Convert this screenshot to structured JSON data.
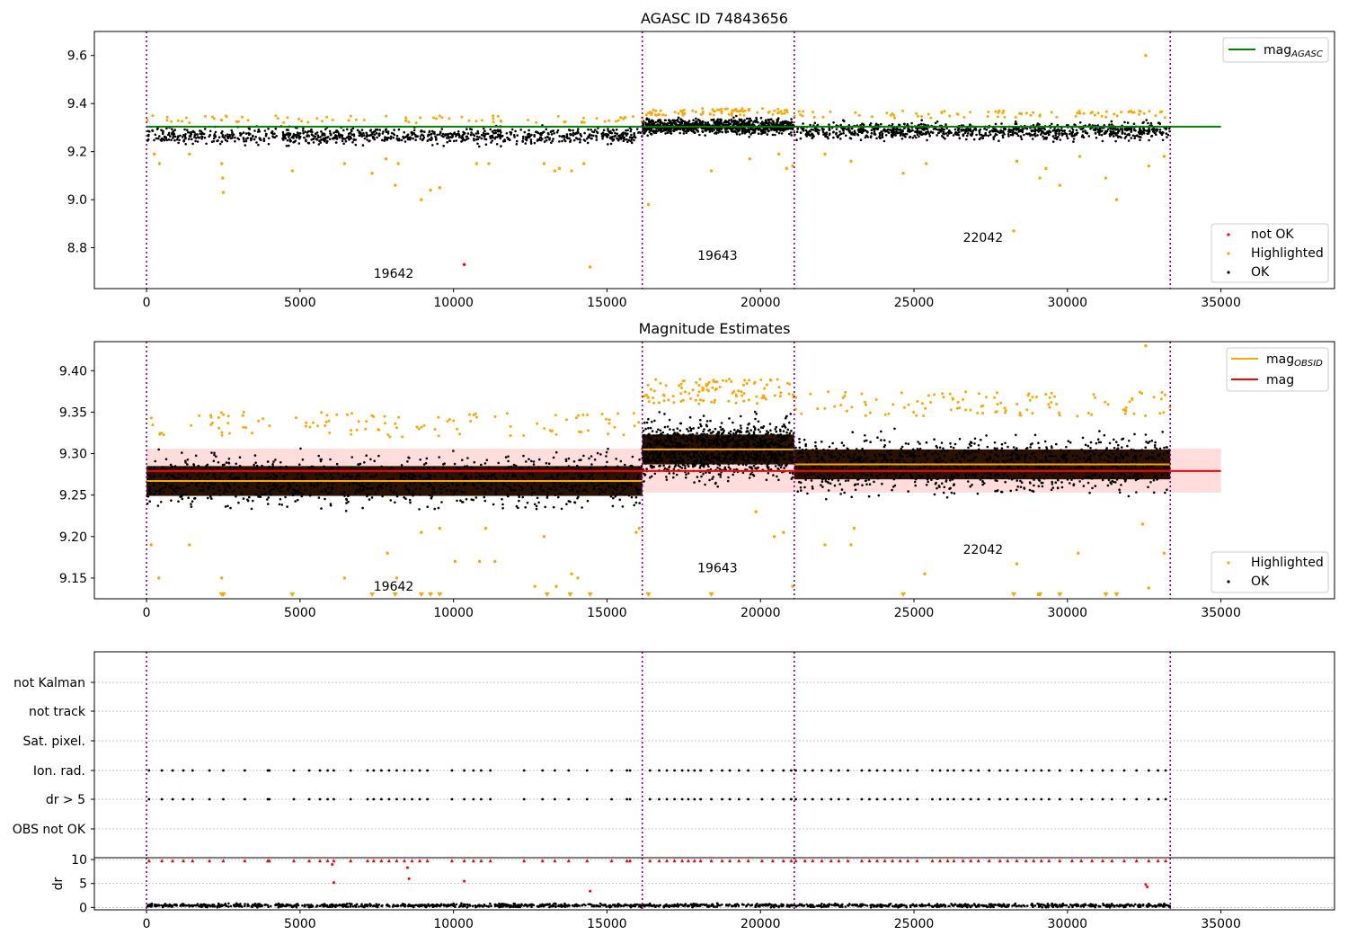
{
  "chart_data": [
    {
      "type": "scatter",
      "title": "AGASC ID 74843656",
      "xlim": [
        -1700,
        38700
      ],
      "ylim": [
        8.63,
        9.7
      ],
      "xticks": [
        0,
        5000,
        10000,
        15000,
        20000,
        25000,
        30000,
        35000
      ],
      "yticks": [
        8.8,
        9.0,
        9.2,
        9.4,
        9.6
      ],
      "ytick_labels": [
        "8.8",
        "9.0",
        "9.2",
        "9.4",
        "9.6"
      ],
      "observation_boundaries": [
        0,
        16150,
        21100,
        33350
      ],
      "observation_labels": [
        {
          "text": "19642",
          "x": 8050,
          "y": 8.675
        },
        {
          "text": "19643",
          "x": 18600,
          "y": 8.75
        },
        {
          "text": "22042",
          "x": 27250,
          "y": 8.825
        }
      ],
      "reference_line": {
        "name": "mag_AGASC",
        "value": 9.304,
        "x_range": [
          0,
          35000
        ],
        "color": "#008000"
      },
      "series": [
        {
          "name": "OK",
          "color": "#000000",
          "bands": [
            {
              "x_range": [
                0,
                16150
              ],
              "low": 9.22,
              "high": 9.32,
              "center": 9.265
            },
            {
              "x_range": [
                16150,
                21100
              ],
              "low": 9.26,
              "high": 9.35,
              "center": 9.305
            },
            {
              "x_range": [
                21100,
                33350
              ],
              "low": 9.24,
              "high": 9.34,
              "center": 9.285
            }
          ]
        },
        {
          "name": "Highlighted",
          "color": "#ffa500",
          "points": [
            [
              250,
              9.19
            ],
            [
              420,
              9.15
            ],
            [
              1400,
              9.19
            ],
            [
              2450,
              9.15
            ],
            [
              2480,
              9.09
            ],
            [
              2500,
              9.03
            ],
            [
              4750,
              9.12
            ],
            [
              6450,
              9.15
            ],
            [
              7350,
              9.11
            ],
            [
              7800,
              9.17
            ],
            [
              8100,
              9.06
            ],
            [
              8200,
              9.15
            ],
            [
              8950,
              9.0
            ],
            [
              9250,
              9.04
            ],
            [
              9550,
              9.05
            ],
            [
              10750,
              9.15
            ],
            [
              11150,
              9.15
            ],
            [
              12950,
              9.15
            ],
            [
              13300,
              9.12
            ],
            [
              13450,
              9.13
            ],
            [
              13850,
              9.12
            ],
            [
              14250,
              9.15
            ],
            [
              14450,
              8.72
            ],
            [
              16350,
              8.98
            ],
            [
              18400,
              9.12
            ],
            [
              19650,
              9.17
            ],
            [
              20600,
              9.19
            ],
            [
              20850,
              9.13
            ],
            [
              21050,
              9.14
            ],
            [
              22100,
              9.19
            ],
            [
              22950,
              9.16
            ],
            [
              24650,
              9.11
            ],
            [
              25400,
              9.15
            ],
            [
              28250,
              8.87
            ],
            [
              28350,
              9.16
            ],
            [
              29100,
              9.09
            ],
            [
              29300,
              9.13
            ],
            [
              29750,
              9.06
            ],
            [
              30400,
              9.18
            ],
            [
              31250,
              9.09
            ],
            [
              31600,
              9.0
            ],
            [
              32550,
              9.6
            ],
            [
              32650,
              9.14
            ],
            [
              33150,
              9.18
            ]
          ]
        },
        {
          "name": "not OK",
          "color": "#ff0000",
          "points": [
            [
              10350,
              8.73
            ]
          ]
        }
      ],
      "legends": [
        [
          "mag_AGASC"
        ],
        [
          "not OK",
          "Highlighted",
          "OK"
        ]
      ]
    },
    {
      "type": "scatter",
      "title": "Magnitude Estimates",
      "xlim": [
        -1700,
        38700
      ],
      "ylim": [
        9.125,
        9.435
      ],
      "xticks": [
        0,
        5000,
        10000,
        15000,
        20000,
        25000,
        30000,
        35000
      ],
      "yticks": [
        9.15,
        9.2,
        9.25,
        9.3,
        9.35,
        9.4
      ],
      "ytick_labels": [
        "9.15",
        "9.20",
        "9.25",
        "9.30",
        "9.35",
        "9.40"
      ],
      "observation_boundaries": [
        0,
        16150,
        21100,
        33350
      ],
      "observation_labels": [
        {
          "text": "19642",
          "x": 8050,
          "y": 9.135
        },
        {
          "text": "19643",
          "x": 18600,
          "y": 9.157
        },
        {
          "text": "22042",
          "x": 27250,
          "y": 9.179
        }
      ],
      "reference_band": {
        "low": 9.253,
        "high": 9.306,
        "x_range": [
          0,
          35000
        ],
        "color": "#ffdddd"
      },
      "lines": [
        {
          "name": "mag_OBSID",
          "color": "#ffa500",
          "segments": [
            [
              0,
              16150,
              9.267
            ],
            [
              16150,
              21100,
              9.305
            ],
            [
              21100,
              33350,
              9.287
            ]
          ]
        },
        {
          "name": "mag",
          "color": "#ff0000",
          "segments": [
            [
              0,
              35000,
              9.279
            ]
          ]
        }
      ],
      "series": [
        {
          "name": "OK",
          "color": "#000000",
          "bands": [
            {
              "x_range": [
                0,
                16150
              ],
              "low": 9.23,
              "high": 9.32,
              "center": 9.267
            },
            {
              "x_range": [
                16150,
                21100
              ],
              "low": 9.26,
              "high": 9.36,
              "center": 9.305
            },
            {
              "x_range": [
                21100,
                33350
              ],
              "low": 9.245,
              "high": 9.345,
              "center": 9.287
            }
          ]
        },
        {
          "name": "Highlighted",
          "color": "#ffa500",
          "points": [
            [
              150,
              9.19
            ],
            [
              400,
              9.15
            ],
            [
              1400,
              9.19
            ],
            [
              2450,
              9.15
            ],
            [
              6450,
              9.15
            ],
            [
              7850,
              9.18
            ],
            [
              8150,
              9.15
            ],
            [
              8950,
              9.205
            ],
            [
              9550,
              9.21
            ],
            [
              10050,
              9.17
            ],
            [
              10850,
              9.17
            ],
            [
              11050,
              9.21
            ],
            [
              11350,
              9.17
            ],
            [
              12650,
              9.14
            ],
            [
              12950,
              9.2
            ],
            [
              13350,
              9.14
            ],
            [
              13850,
              9.155
            ],
            [
              14050,
              9.15
            ],
            [
              15950,
              9.205
            ],
            [
              16050,
              9.21
            ],
            [
              19850,
              9.23
            ],
            [
              20450,
              9.2
            ],
            [
              20750,
              9.205
            ],
            [
              21050,
              9.14
            ],
            [
              22100,
              9.19
            ],
            [
              22950,
              9.19
            ],
            [
              23050,
              9.21
            ],
            [
              25350,
              9.155
            ],
            [
              28350,
              9.167
            ],
            [
              29050,
              9.13
            ],
            [
              30350,
              9.18
            ],
            [
              32450,
              9.215
            ],
            [
              32650,
              9.138
            ],
            [
              33150,
              9.18
            ],
            [
              32550,
              9.43
            ]
          ],
          "floor_markers_x": [
            2450,
            2500,
            4750,
            7350,
            8100,
            8950,
            9250,
            9550,
            13050,
            13800,
            14450,
            16350,
            18400,
            24650,
            28250,
            29100,
            29750,
            31250,
            31600
          ]
        }
      ],
      "legends": [
        [
          "mag_OBSID",
          "mag"
        ],
        [
          "Highlighted",
          "OK"
        ]
      ]
    },
    {
      "type": "scatter",
      "title": "",
      "xlim": [
        -1700,
        38700
      ],
      "flag_rows": [
        "not Kalman",
        "not track",
        "Sat. pixel.",
        "Ion. rad.",
        "dr > 5",
        "OBS not OK"
      ],
      "observation_boundaries": [
        0,
        16150,
        21100,
        33350
      ],
      "flag_points": {
        "Ion. rad.": [
          80,
          500,
          850,
          1200,
          1500,
          2050,
          2500,
          3200,
          3950,
          4000,
          4800,
          5300,
          5650,
          5900,
          6100,
          6650,
          7200,
          7400,
          7650,
          7900,
          8150,
          8400,
          8650,
          8900,
          9150,
          9950,
          10350,
          10650,
          10900,
          11200,
          12300,
          12900,
          13300,
          13750,
          14350,
          15150,
          15650,
          15750,
          16400,
          16700,
          16950,
          17200,
          17450,
          17650,
          17850,
          18050,
          18400,
          18750,
          19000,
          19300,
          19600,
          20050,
          20400,
          20750,
          21000,
          21150,
          21450,
          21700,
          22000,
          22300,
          22550,
          22850,
          23300,
          23550,
          23800,
          24050,
          24300,
          24550,
          24800,
          25100,
          25600,
          25850,
          26100,
          26300,
          26600,
          26850,
          27100,
          27450,
          27800,
          28050,
          28350,
          28650,
          28900,
          29150,
          29400,
          29750,
          30150,
          30450,
          30800,
          31150,
          31450,
          31850,
          32250,
          32650,
          32950,
          33200
        ],
        "dr > 5": [
          80,
          500,
          850,
          1200,
          1500,
          2050,
          2500,
          3200,
          3950,
          4000,
          4800,
          5300,
          5650,
          5900,
          6100,
          6650,
          7200,
          7400,
          7650,
          7900,
          8150,
          8400,
          8650,
          8900,
          9150,
          9950,
          10350,
          10650,
          10900,
          11200,
          12300,
          12900,
          13300,
          13750,
          14350,
          15150,
          15650,
          15750,
          16400,
          16700,
          16950,
          17200,
          17450,
          17650,
          17850,
          18050,
          18400,
          18750,
          19000,
          19300,
          19600,
          20050,
          20400,
          20750,
          21000,
          21150,
          21450,
          21700,
          22000,
          22300,
          22550,
          22850,
          23300,
          23550,
          23800,
          24050,
          24300,
          24550,
          24800,
          25100,
          25600,
          25850,
          26100,
          26300,
          26600,
          26850,
          27100,
          27450,
          27800,
          28050,
          28350,
          28650,
          28900,
          29150,
          29400,
          29750,
          30150,
          30450,
          30800,
          31150,
          31450,
          31850,
          32250,
          32650,
          32950,
          33200
        ]
      }
    },
    {
      "type": "scatter",
      "title": "",
      "ylabel": "dr",
      "xlim": [
        -1700,
        38700
      ],
      "ylim": [
        -0.5,
        10.4
      ],
      "yticks": [
        0,
        5,
        10
      ],
      "ytick_labels": [
        "0",
        "5",
        "10"
      ],
      "xticks": [
        0,
        5000,
        10000,
        15000,
        20000,
        25000,
        30000,
        35000
      ],
      "observation_boundaries": [
        0,
        16150,
        21100,
        33350
      ],
      "series": [
        {
          "name": "OK",
          "color": "#000000",
          "bands": [
            {
              "x_range": [
                0,
                33350
              ],
              "low": 0,
              "high": 1.0,
              "center": 0.4
            }
          ]
        },
        {
          "name": "not OK",
          "color": "#ff0000",
          "points": [
            [
              6050,
              9.0
            ],
            [
              6100,
              5.2
            ],
            [
              8500,
              8.3
            ],
            [
              8550,
              6.0
            ],
            [
              10350,
              5.5
            ],
            [
              14450,
              3.4
            ],
            [
              32550,
              4.8
            ],
            [
              32600,
              4.3
            ]
          ],
          "capped_x": [
            80,
            500,
            850,
            1200,
            1500,
            2050,
            2500,
            3200,
            3950,
            4000,
            4800,
            5300,
            5650,
            5900,
            6100,
            6650,
            7200,
            7400,
            7650,
            7900,
            8150,
            8400,
            8650,
            8900,
            9150,
            9950,
            10350,
            10650,
            10900,
            11200,
            12300,
            12900,
            13300,
            13750,
            14350,
            15150,
            15650,
            15750,
            16400,
            16700,
            16950,
            17200,
            17450,
            17650,
            17850,
            18050,
            18400,
            18750,
            19000,
            19300,
            19600,
            20050,
            20400,
            20750,
            21000,
            21150,
            21450,
            21700,
            22000,
            22300,
            22550,
            22850,
            23300,
            23550,
            23800,
            24050,
            24300,
            24550,
            24800,
            25100,
            25600,
            25850,
            26100,
            26300,
            26600,
            26850,
            27100,
            27450,
            27800,
            28050,
            28350,
            28650,
            28900,
            29150,
            29400,
            29750,
            30150,
            30450,
            30800,
            31150,
            31450,
            31850,
            32250,
            32650,
            32950,
            33200
          ]
        }
      ]
    }
  ],
  "colors": {
    "boundary": "#800080",
    "grid": "#b0b0b0",
    "axis": "#000000"
  }
}
